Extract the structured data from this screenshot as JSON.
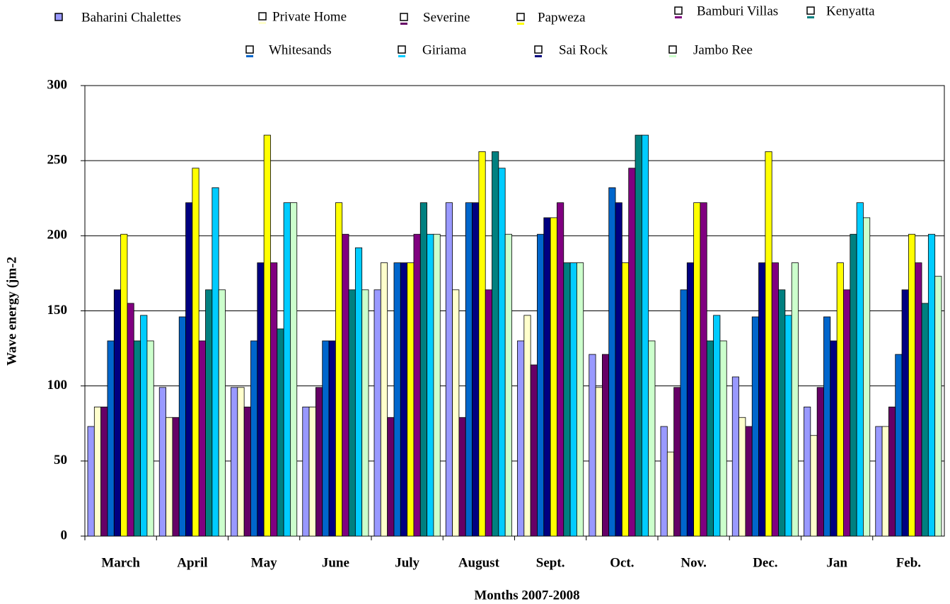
{
  "chart_data": {
    "type": "bar",
    "x_label": "Months 2007-2008",
    "y_label": "Wave energy (jm-2",
    "categories": [
      "March",
      "April",
      "May",
      "June",
      "July",
      "August",
      "Sept.",
      "Oct.",
      "Nov.",
      "Dec.",
      "Jan",
      "Feb."
    ],
    "ylim": [
      0,
      300
    ],
    "yticks": [
      0,
      50,
      100,
      150,
      200,
      250,
      300
    ],
    "grid": true,
    "series": [
      {
        "name": "Baharini Chalettes",
        "color": "#9999ff",
        "values": [
          73,
          99,
          99,
          86,
          164,
          222,
          130,
          121,
          73,
          106,
          86,
          73
        ]
      },
      {
        "name": "Private Home",
        "color": "#ffffcc",
        "values": [
          86,
          79,
          99,
          86,
          182,
          164,
          147,
          99,
          56,
          79,
          67,
          73
        ]
      },
      {
        "name": "Severine",
        "color": "#660066",
        "values": [
          86,
          79,
          86,
          99,
          79,
          79,
          114,
          121,
          99,
          73,
          99,
          86
        ]
      },
      {
        "name": "Whitesands",
        "color": "#0066cc",
        "values": [
          130,
          146,
          130,
          130,
          182,
          222,
          201,
          232,
          164,
          146,
          146,
          121
        ]
      },
      {
        "name": "Sai Rock",
        "color": "#000080",
        "values": [
          164,
          222,
          182,
          130,
          182,
          222,
          212,
          222,
          182,
          182,
          130,
          164
        ]
      },
      {
        "name": "Papweza",
        "color": "#ffff00",
        "values": [
          201,
          245,
          267,
          222,
          182,
          256,
          212,
          182,
          222,
          256,
          182,
          201
        ]
      },
      {
        "name": "Bamburi Villas",
        "color": "#800080",
        "values": [
          155,
          130,
          182,
          201,
          201,
          164,
          222,
          245,
          222,
          182,
          164,
          182
        ]
      },
      {
        "name": "Kenyatta",
        "color": "#008080",
        "values": [
          130,
          164,
          138,
          164,
          222,
          256,
          182,
          267,
          130,
          164,
          201,
          155
        ]
      },
      {
        "name": "Giriama",
        "color": "#00ccff",
        "values": [
          147,
          232,
          222,
          192,
          201,
          245,
          182,
          267,
          147,
          147,
          222,
          201
        ]
      },
      {
        "name": "Jambo Ree",
        "color": "#ccffcc",
        "values": [
          130,
          164,
          222,
          164,
          201,
          201,
          182,
          130,
          130,
          182,
          212,
          173
        ]
      }
    ]
  }
}
